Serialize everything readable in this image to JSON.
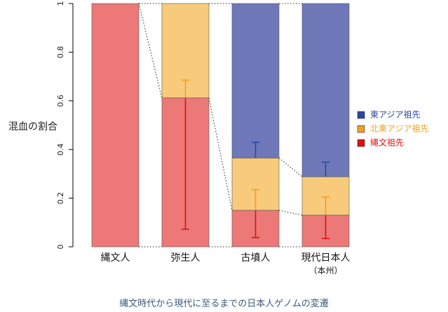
{
  "chart_data": {
    "type": "bar",
    "stacked": true,
    "ylabel": "混血の割合",
    "ylim": [
      0,
      1
    ],
    "yticks": [
      "0",
      "0.2",
      "0.4",
      "0.6",
      "0.8",
      "1"
    ],
    "categories": [
      {
        "line1": "縄文人",
        "line2": ""
      },
      {
        "line1": "弥生人",
        "line2": ""
      },
      {
        "line1": "古墳人",
        "line2": ""
      },
      {
        "line1": "現代日本人",
        "line2": "（本州）"
      }
    ],
    "series": [
      {
        "name": "縄文祖先",
        "color": "#ec7878",
        "values": [
          1.0,
          0.612,
          0.15,
          0.13
        ]
      },
      {
        "name": "北東アジア祖先",
        "color": "#f7cb7b",
        "values": [
          0.0,
          0.388,
          0.215,
          0.158
        ]
      },
      {
        "name": "東アジア祖先",
        "color": "#6e78b8",
        "values": [
          0.0,
          0.0,
          0.635,
          0.712
        ]
      }
    ],
    "error_bars": [
      {
        "series": "縄文祖先",
        "color": "#e01010",
        "points": [
          null,
          [
            0.612,
            0.072
          ],
          [
            0.15,
            0.038
          ],
          [
            0.13,
            0.034
          ]
        ]
      },
      {
        "series": "北東アジア祖先",
        "color": "#f0a020",
        "points": [
          null,
          [
            0.612,
            0.685
          ],
          [
            0.15,
            0.235
          ],
          [
            0.13,
            0.205
          ]
        ]
      },
      {
        "series": "東アジア祖先",
        "color": "#2848a0",
        "points": [
          null,
          null,
          [
            0.365,
            0.43
          ],
          [
            0.288,
            0.348
          ]
        ]
      }
    ],
    "legend": {
      "position": "right",
      "items": [
        {
          "label": "東アジア祖先",
          "swatch": "#2848a0",
          "text_color": "#2848a0"
        },
        {
          "label": "北東アジア祖先",
          "swatch": "#f0a020",
          "text_color": "#f0a020"
        },
        {
          "label": "縄文祖先",
          "swatch": "#e01010",
          "text_color": "#e01010"
        }
      ]
    }
  },
  "caption": "縄文時代から現代に至るまでの日本人ゲノムの変遷"
}
